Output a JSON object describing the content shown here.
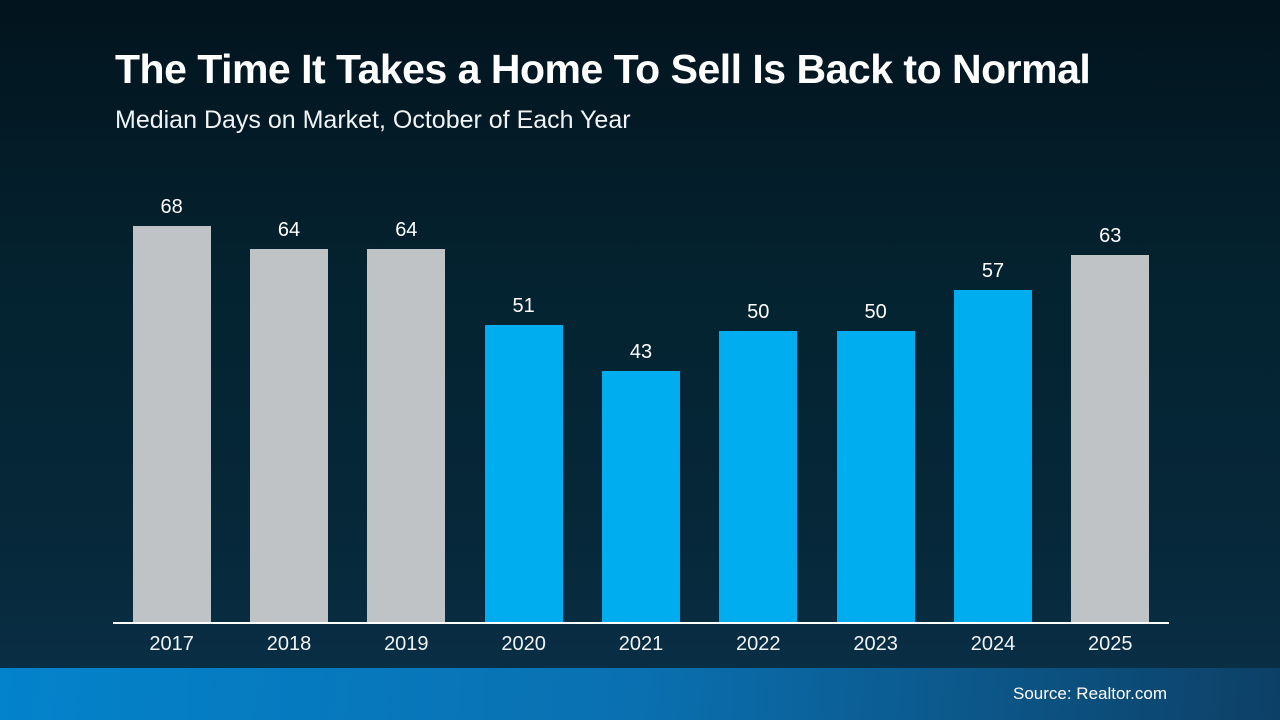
{
  "page": {
    "title": "The Time It Takes a Home To Sell Is Back to Normal",
    "subtitle": "Median Days on Market, October of Each Year",
    "source": "Source: Realtor.com"
  },
  "colors": {
    "bar_blue": "#00AEEF",
    "bar_gray": "#BFC3C6",
    "background_top": "#02141E",
    "background_bottom": "#0B3048",
    "footer_left": "#0383CC",
    "footer_right": "#0D4066",
    "text": "#FFFFFF",
    "axis_line": "#FFFFFF"
  },
  "chart_data": {
    "type": "bar",
    "title": "The Time It Takes a Home To Sell Is Back to Normal",
    "subtitle": "Median Days on Market, October of Each Year",
    "categories": [
      "2017",
      "2018",
      "2019",
      "2020",
      "2021",
      "2022",
      "2023",
      "2024",
      "2025"
    ],
    "values": [
      68,
      64,
      64,
      51,
      43,
      50,
      50,
      57,
      63
    ],
    "bar_colors": [
      "gray",
      "gray",
      "gray",
      "blue",
      "blue",
      "blue",
      "blue",
      "blue",
      "gray"
    ],
    "xlabel": "",
    "ylabel": "",
    "ylim": [
      0,
      70
    ],
    "grid": false,
    "legend": false,
    "data_labels": true,
    "source": "Source: Realtor.com"
  }
}
